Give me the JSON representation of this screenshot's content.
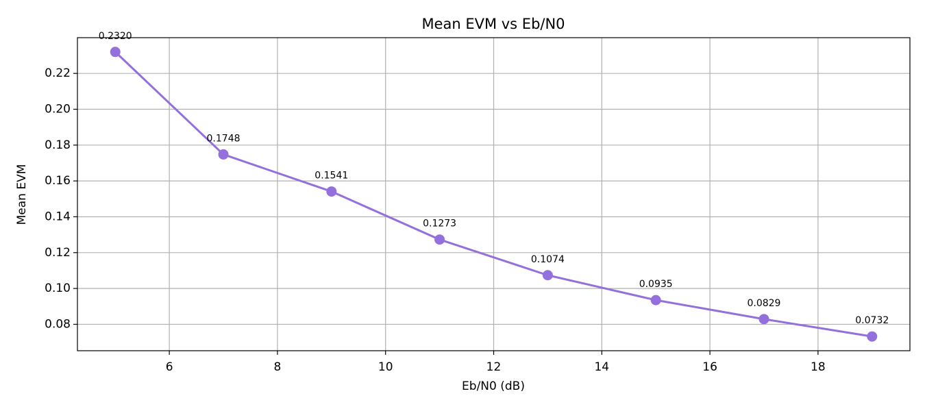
{
  "chart_data": {
    "type": "line",
    "title": "Mean EVM vs Eb/N0",
    "x_label": "Eb/N0 (dB)",
    "y_label": "Mean EVM",
    "x": [
      5,
      7,
      9,
      11,
      13,
      15,
      17,
      19
    ],
    "series": [
      {
        "color": "#9370db",
        "values": [
          0.232,
          0.1748,
          0.1541,
          0.1273,
          0.1074,
          0.0935,
          0.0829,
          0.0732
        ],
        "value_labels": [
          "0.2320",
          "0.1748",
          "0.1541",
          "0.1273",
          "0.1074",
          "0.0935",
          "0.0829",
          "0.0732"
        ]
      }
    ],
    "xlim": [
      4.3,
      19.7
    ],
    "xticks": [
      6,
      8,
      10,
      12,
      14,
      16,
      18
    ],
    "ylim": [
      0.06526,
      0.23994
    ],
    "yticks": [
      0.08,
      {
        "value": 0.1,
        "label": "0.10"
      },
      0.12,
      0.14,
      0.16,
      0.18,
      {
        "value": 0.2,
        "label": "0.20"
      },
      0.22
    ],
    "grid": true
  }
}
